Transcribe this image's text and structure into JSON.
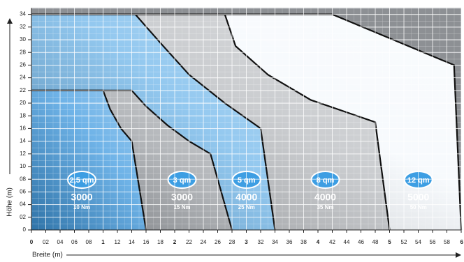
{
  "chart_data": {
    "type": "area",
    "y_label": "Höhe (m)",
    "x_label": "Breite (m)",
    "xlim": [
      0,
      6
    ],
    "ylim": [
      0,
      3.5
    ],
    "xticks": [
      0,
      {
        "value": 0.2,
        "label": "02"
      },
      {
        "value": 0.4,
        "label": "04"
      },
      {
        "value": 0.6,
        "label": "06"
      },
      {
        "value": 0.8,
        "label": "08"
      },
      1,
      {
        "value": 1.2,
        "label": "12"
      },
      {
        "value": 1.4,
        "label": "14"
      },
      {
        "value": 1.6,
        "label": "16"
      },
      {
        "value": 1.8,
        "label": "18"
      },
      2,
      {
        "value": 2.2,
        "label": "22"
      },
      {
        "value": 2.4,
        "label": "24"
      },
      {
        "value": 2.6,
        "label": "26"
      },
      {
        "value": 2.8,
        "label": "28"
      },
      3,
      {
        "value": 3.2,
        "label": "32"
      },
      {
        "value": 3.4,
        "label": "34"
      },
      {
        "value": 3.6,
        "label": "36"
      },
      {
        "value": 3.8,
        "label": "38"
      },
      4,
      {
        "value": 4.2,
        "label": "42"
      },
      {
        "value": 4.4,
        "label": "44"
      },
      {
        "value": 4.6,
        "label": "46"
      },
      {
        "value": 4.8,
        "label": "48"
      },
      5,
      {
        "value": 5.2,
        "label": "52"
      },
      {
        "value": 5.4,
        "label": "54"
      },
      {
        "value": 5.6,
        "label": "56"
      },
      {
        "value": 5.8,
        "label": "58"
      },
      6
    ],
    "yticks": [
      0,
      {
        "value": 0.2,
        "label": "02"
      },
      {
        "value": 0.4,
        "label": "04"
      },
      {
        "value": 0.6,
        "label": "06"
      },
      {
        "value": 0.8,
        "label": "08"
      },
      {
        "value": 1,
        "label": "10"
      },
      {
        "value": 1.2,
        "label": "12"
      },
      {
        "value": 1.4,
        "label": "14"
      },
      {
        "value": 1.6,
        "label": "16"
      },
      {
        "value": 1.8,
        "label": "18"
      },
      {
        "value": 2,
        "label": "20"
      },
      {
        "value": 2.2,
        "label": "22"
      },
      {
        "value": 2.4,
        "label": "24"
      },
      {
        "value": 2.6,
        "label": "26"
      },
      {
        "value": 2.8,
        "label": "28"
      },
      {
        "value": 3,
        "label": "30"
      },
      {
        "value": 3.2,
        "label": "32"
      },
      {
        "value": 3.4,
        "label": "34"
      }
    ],
    "grid": true,
    "series": [
      {
        "name": "12 qm",
        "capacity": "5000",
        "torque": "50 Nm",
        "color": "#f4f8fc",
        "x": [
          0,
          4.2,
          5.9,
          6.0
        ],
        "y": [
          3.4,
          3.4,
          2.6,
          0
        ]
      },
      {
        "name": "8 qm",
        "capacity": "4000",
        "torque": "35 Nm",
        "color": "#b9bcc0",
        "x": [
          0,
          2.7,
          2.85,
          3.3,
          3.9,
          4.8,
          5.0
        ],
        "y": [
          3.4,
          3.4,
          2.9,
          2.45,
          2.05,
          1.7,
          0
        ]
      },
      {
        "name": "5 qm",
        "capacity": "4000",
        "torque": "25 Nm",
        "color": "#6fb6ea",
        "x": [
          0,
          1.45,
          1.8,
          2.2,
          2.7,
          3.2,
          3.4
        ],
        "y": [
          3.4,
          3.4,
          2.95,
          2.45,
          2.0,
          1.6,
          0
        ]
      },
      {
        "name": "3 qm",
        "capacity": "3000",
        "torque": "15 Nm",
        "color": "#9a9ea3",
        "x": [
          0,
          1.4,
          1.6,
          1.9,
          2.2,
          2.5,
          2.8
        ],
        "y": [
          2.2,
          2.2,
          1.95,
          1.65,
          1.4,
          1.2,
          0
        ]
      },
      {
        "name": "2,5 qm",
        "capacity": "3000",
        "torque": "10 Nm",
        "color": "#3f9ae0",
        "x": [
          0,
          1.0,
          1.1,
          1.25,
          1.4,
          1.6
        ],
        "y": [
          2.2,
          2.2,
          1.9,
          1.6,
          1.4,
          0
        ]
      }
    ]
  }
}
